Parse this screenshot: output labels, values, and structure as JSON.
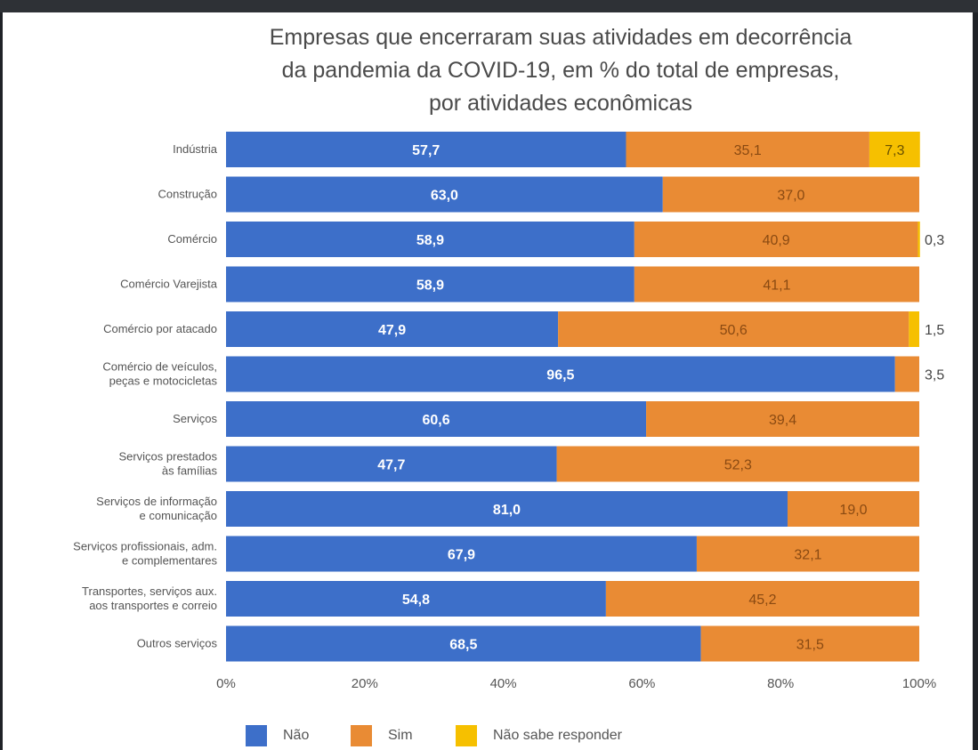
{
  "chart_data": {
    "type": "bar",
    "orientation": "horizontal",
    "stacked": true,
    "title_lines": [
      "Empresas que encerraram suas atividades em decorrência",
      "da pandemia da COVID-19, em % do total de empresas,",
      "por atividades econômicas"
    ],
    "categories": [
      [
        "Indústria"
      ],
      [
        "Construção"
      ],
      [
        "Comércio"
      ],
      [
        "Comércio Varejista"
      ],
      [
        "Comércio por atacado"
      ],
      [
        "Comércio de veículos,",
        "peças e motocicletas"
      ],
      [
        "Serviços"
      ],
      [
        "Serviços prestados",
        "às famílias"
      ],
      [
        "Serviços de informação",
        "e comunicação"
      ],
      [
        "Serviços profissionais, adm.",
        "e complementares"
      ],
      [
        "Transportes, serviços aux.",
        "aos transportes e correio"
      ],
      [
        "Outros serviços"
      ]
    ],
    "series": [
      {
        "name": "Não",
        "color": "#3d6fc9",
        "values": [
          57.7,
          63.0,
          58.9,
          58.9,
          47.9,
          96.5,
          60.6,
          47.7,
          81.0,
          67.9,
          54.8,
          68.5
        ]
      },
      {
        "name": "Sim",
        "color": "#e98b34",
        "values": [
          35.1,
          37.0,
          40.9,
          41.1,
          50.6,
          3.5,
          39.4,
          52.3,
          19.0,
          32.1,
          45.2,
          31.5
        ]
      },
      {
        "name": "Não sabe responder",
        "color": "#f6c000",
        "values": [
          7.3,
          0,
          0.3,
          0,
          1.5,
          0,
          0,
          0,
          0,
          0,
          0,
          0
        ]
      }
    ],
    "data_labels": [
      [
        "57,7",
        "35,1",
        "7,3"
      ],
      [
        "63,0",
        "37,0",
        ""
      ],
      [
        "58,9",
        "40,9",
        "0,3"
      ],
      [
        "58,9",
        "41,1",
        ""
      ],
      [
        "47,9",
        "50,6",
        "1,5"
      ],
      [
        "96,5",
        "3,5",
        ""
      ],
      [
        "60,6",
        "39,4",
        ""
      ],
      [
        "47,7",
        "52,3",
        ""
      ],
      [
        "81,0",
        "19,0",
        ""
      ],
      [
        "67,9",
        "32,1",
        ""
      ],
      [
        "54,8",
        "45,2",
        ""
      ],
      [
        "68,5",
        "31,5",
        ""
      ]
    ],
    "x_ticks": [
      "0%",
      "20%",
      "40%",
      "60%",
      "80%",
      "100%"
    ],
    "xlim": [
      0,
      100
    ],
    "legend_position": "bottom"
  }
}
